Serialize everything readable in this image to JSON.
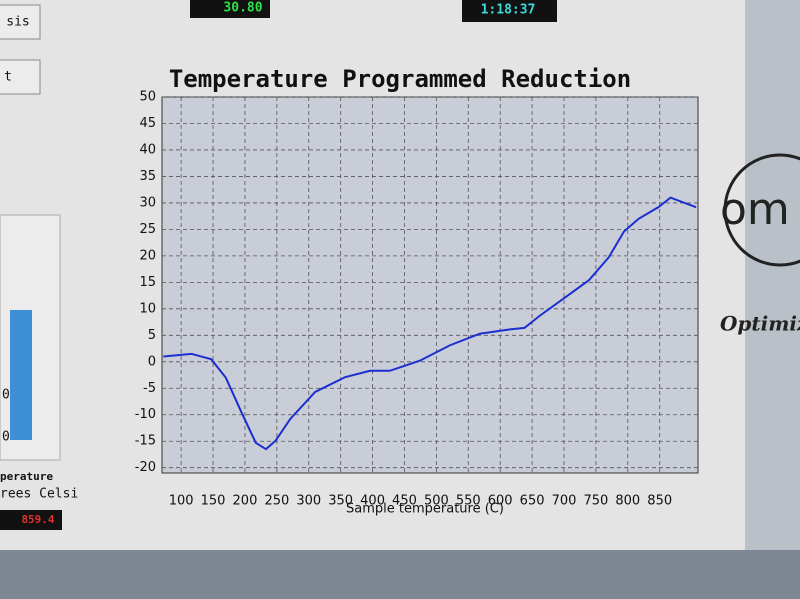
{
  "ui": {
    "button_1": "sis",
    "button_2": "t",
    "readout_1": "30.80",
    "readout_2": "1:18:37",
    "gauge_label_1": "0",
    "gauge_label_2": "0",
    "gauge_caption_1": "perature",
    "gauge_caption_2": "rees Celsi",
    "temperature_readout": "859.4",
    "logo_text": "om",
    "logo_caption": "Optimiz"
  },
  "chart_data": {
    "type": "line",
    "title": "Temperature Programmed Reduction",
    "x_label": "Sample temperature (C)",
    "xlim": [
      70,
      910
    ],
    "ylim": [
      -21,
      50
    ],
    "xticks": [
      100,
      150,
      200,
      250,
      300,
      350,
      400,
      450,
      500,
      550,
      600,
      650,
      700,
      750,
      800,
      850
    ],
    "yticks": [
      -20,
      -15,
      -10,
      -5,
      0,
      5,
      10,
      15,
      20,
      25,
      30,
      35,
      40,
      45,
      50
    ],
    "grid": true,
    "x": [
      72,
      116,
      147,
      170,
      194,
      217,
      233,
      248,
      271,
      310,
      357,
      396,
      427,
      474,
      521,
      568,
      614,
      638,
      661,
      708,
      739,
      770,
      794,
      817,
      848,
      867,
      887,
      907
    ],
    "series": [
      {
        "color": "#1a2fd0",
        "values": [
          1,
          1.5,
          0.5,
          -3,
          -9.4,
          -15.3,
          -16.5,
          -14.9,
          -10.8,
          -5.7,
          -2.9,
          -1.7,
          -1.7,
          0.2,
          3.1,
          5.3,
          6.1,
          6.4,
          8.6,
          12.7,
          15.4,
          19.7,
          24.6,
          27,
          29.2,
          31,
          30.1,
          29.2
        ]
      }
    ]
  }
}
